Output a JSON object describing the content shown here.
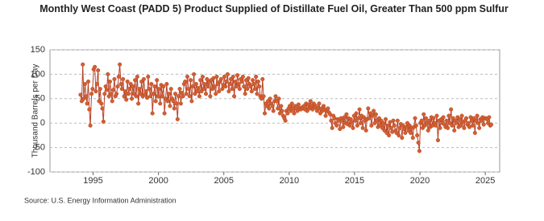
{
  "chart_data": {
    "type": "line",
    "title": "Monthly West Coast (PADD 5) Product Supplied of Distillate Fuel Oil, Greater Than 500 ppm Sulfur",
    "y_label": "Thousand Barrels per Day",
    "source": "Source: U.S. Energy Information Administration",
    "color": "#b5432a",
    "marker_color": "#d2602e",
    "grid": true,
    "xlim": [
      1991.7,
      2026.1
    ],
    "xticks": [
      1995,
      2000,
      2005,
      2010,
      2015,
      2020,
      2025
    ],
    "ylim": [
      -100,
      150
    ],
    "yticks": [
      -100,
      -50,
      0,
      50,
      100,
      150
    ],
    "x": [
      1994.04,
      1994.13,
      1994.21,
      1994.29,
      1994.38,
      1994.46,
      1994.54,
      1994.63,
      1994.71,
      1994.79,
      1994.88,
      1994.96,
      1995.04,
      1995.13,
      1995.21,
      1995.29,
      1995.38,
      1995.46,
      1995.54,
      1995.63,
      1995.71,
      1995.79,
      1995.88,
      1995.96,
      1996.04,
      1996.13,
      1996.21,
      1996.29,
      1996.38,
      1996.46,
      1996.54,
      1996.63,
      1996.71,
      1996.79,
      1996.88,
      1996.96,
      1997.04,
      1997.13,
      1997.21,
      1997.29,
      1997.38,
      1997.46,
      1997.54,
      1997.63,
      1997.71,
      1997.79,
      1997.88,
      1997.96,
      1998.04,
      1998.13,
      1998.21,
      1998.29,
      1998.38,
      1998.46,
      1998.54,
      1998.63,
      1998.71,
      1998.79,
      1998.88,
      1998.96,
      1999.04,
      1999.13,
      1999.21,
      1999.29,
      1999.38,
      1999.46,
      1999.54,
      1999.63,
      1999.71,
      1999.79,
      1999.88,
      1999.96,
      2000.04,
      2000.13,
      2000.21,
      2000.29,
      2000.38,
      2000.46,
      2000.54,
      2000.63,
      2000.71,
      2000.79,
      2000.88,
      2000.96,
      2001.04,
      2001.13,
      2001.21,
      2001.29,
      2001.38,
      2001.46,
      2001.54,
      2001.63,
      2001.71,
      2001.79,
      2001.88,
      2001.96,
      2002.04,
      2002.13,
      2002.21,
      2002.29,
      2002.38,
      2002.46,
      2002.54,
      2002.63,
      2002.71,
      2002.79,
      2002.88,
      2002.96,
      2003.04,
      2003.13,
      2003.21,
      2003.29,
      2003.38,
      2003.46,
      2003.54,
      2003.63,
      2003.71,
      2003.79,
      2003.88,
      2003.96,
      2004.04,
      2004.13,
      2004.21,
      2004.29,
      2004.38,
      2004.46,
      2004.54,
      2004.63,
      2004.71,
      2004.79,
      2004.88,
      2004.96,
      2005.04,
      2005.13,
      2005.21,
      2005.29,
      2005.38,
      2005.46,
      2005.54,
      2005.63,
      2005.71,
      2005.79,
      2005.88,
      2005.96,
      2006.04,
      2006.13,
      2006.21,
      2006.29,
      2006.38,
      2006.46,
      2006.54,
      2006.63,
      2006.71,
      2006.79,
      2006.88,
      2006.96,
      2007.04,
      2007.13,
      2007.21,
      2007.29,
      2007.38,
      2007.46,
      2007.54,
      2007.63,
      2007.71,
      2007.79,
      2007.88,
      2007.96,
      2008.04,
      2008.13,
      2008.21,
      2008.29,
      2008.38,
      2008.46,
      2008.54,
      2008.63,
      2008.71,
      2008.79,
      2008.88,
      2008.96,
      2009.04,
      2009.13,
      2009.21,
      2009.29,
      2009.38,
      2009.46,
      2009.54,
      2009.63,
      2009.71,
      2009.79,
      2009.88,
      2009.96,
      2010.04,
      2010.13,
      2010.21,
      2010.29,
      2010.38,
      2010.46,
      2010.54,
      2010.63,
      2010.71,
      2010.79,
      2010.88,
      2010.96,
      2011.04,
      2011.13,
      2011.21,
      2011.29,
      2011.38,
      2011.46,
      2011.54,
      2011.63,
      2011.71,
      2011.79,
      2011.88,
      2011.96,
      2012.04,
      2012.13,
      2012.21,
      2012.29,
      2012.38,
      2012.46,
      2012.54,
      2012.63,
      2012.71,
      2012.79,
      2012.88,
      2012.96,
      2013.04,
      2013.13,
      2013.21,
      2013.29,
      2013.38,
      2013.46,
      2013.54,
      2013.63,
      2013.71,
      2013.79,
      2013.88,
      2013.96,
      2014.04,
      2014.13,
      2014.21,
      2014.29,
      2014.38,
      2014.46,
      2014.54,
      2014.63,
      2014.71,
      2014.79,
      2014.88,
      2014.96,
      2015.04,
      2015.13,
      2015.21,
      2015.29,
      2015.38,
      2015.46,
      2015.54,
      2015.63,
      2015.71,
      2015.79,
      2015.88,
      2015.96,
      2016.04,
      2016.13,
      2016.21,
      2016.29,
      2016.38,
      2016.46,
      2016.54,
      2016.63,
      2016.71,
      2016.79,
      2016.88,
      2016.96,
      2017.04,
      2017.13,
      2017.21,
      2017.29,
      2017.38,
      2017.46,
      2017.54,
      2017.63,
      2017.71,
      2017.79,
      2017.88,
      2017.96,
      2018.04,
      2018.13,
      2018.21,
      2018.29,
      2018.38,
      2018.46,
      2018.54,
      2018.63,
      2018.71,
      2018.79,
      2018.88,
      2018.96,
      2019.04,
      2019.13,
      2019.21,
      2019.29,
      2019.38,
      2019.46,
      2019.54,
      2019.63,
      2019.71,
      2019.79,
      2019.88,
      2019.96,
      2020.04,
      2020.13,
      2020.21,
      2020.29,
      2020.38,
      2020.46,
      2020.54,
      2020.63,
      2020.71,
      2020.79,
      2020.88,
      2020.96,
      2021.04,
      2021.13,
      2021.21,
      2021.29,
      2021.38,
      2021.46,
      2021.54,
      2021.63,
      2021.71,
      2021.79,
      2021.88,
      2021.96,
      2022.04,
      2022.13,
      2022.21,
      2022.29,
      2022.38,
      2022.46,
      2022.54,
      2022.63,
      2022.71,
      2022.79,
      2022.88,
      2022.96,
      2023.04,
      2023.13,
      2023.21,
      2023.29,
      2023.38,
      2023.46,
      2023.54,
      2023.63,
      2023.71,
      2023.79,
      2023.88,
      2023.96,
      2024.04,
      2024.13,
      2024.21,
      2024.29,
      2024.38,
      2024.46,
      2024.54,
      2024.63,
      2024.71,
      2024.79,
      2024.88,
      2024.96,
      2025.04,
      2025.13,
      2025.21,
      2025.29,
      2025.38,
      2025.46
    ],
    "values": [
      58,
      45,
      120,
      50,
      80,
      55,
      40,
      85,
      28,
      -5,
      60,
      70,
      110,
      115,
      65,
      80,
      108,
      45,
      70,
      40,
      30,
      3,
      60,
      75,
      68,
      100,
      55,
      85,
      60,
      45,
      68,
      90,
      55,
      60,
      75,
      95,
      120,
      80,
      70,
      90,
      55,
      65,
      48,
      85,
      60,
      70,
      80,
      50,
      75,
      60,
      88,
      55,
      95,
      40,
      70,
      60,
      85,
      55,
      90,
      58,
      65,
      52,
      95,
      70,
      55,
      80,
      20,
      60,
      75,
      45,
      88,
      55,
      70,
      40,
      78,
      55,
      75,
      20,
      50,
      80,
      45,
      60,
      35,
      70,
      50,
      45,
      30,
      60,
      40,
      8,
      55,
      70,
      40,
      62,
      55,
      80,
      85,
      60,
      95,
      70,
      55,
      88,
      45,
      75,
      100,
      60,
      80,
      65,
      72,
      55,
      88,
      65,
      95,
      70,
      80,
      60,
      90,
      75,
      85,
      55,
      88,
      70,
      92,
      75,
      60,
      95,
      80,
      65,
      85,
      90,
      70,
      78,
      95,
      75,
      85,
      100,
      65,
      80,
      90,
      70,
      95,
      55,
      85,
      75,
      98,
      80,
      70,
      90,
      85,
      95,
      75,
      60,
      88,
      70,
      92,
      80,
      75,
      65,
      88,
      80,
      70,
      95,
      60,
      85,
      75,
      55,
      50,
      90,
      55,
      20,
      40,
      35,
      45,
      30,
      50,
      40,
      35,
      25,
      45,
      55,
      45,
      30,
      50,
      20,
      35,
      25,
      15,
      10,
      5,
      25,
      20,
      30,
      35,
      25,
      40,
      30,
      20,
      35,
      30,
      25,
      38,
      30,
      28,
      32,
      30,
      35,
      28,
      40,
      25,
      38,
      30,
      45,
      35,
      28,
      40,
      32,
      35,
      25,
      30,
      40,
      20,
      30,
      25,
      35,
      28,
      15,
      25,
      30,
      22,
      18,
      5,
      -10,
      15,
      10,
      0,
      -5,
      8,
      5,
      -12,
      10,
      5,
      -8,
      12,
      0,
      18,
      -2,
      10,
      -5,
      8,
      2,
      -10,
      15,
      5,
      20,
      -5,
      10,
      28,
      0,
      15,
      -10,
      12,
      5,
      -15,
      8,
      30,
      10,
      20,
      -5,
      15,
      25,
      0,
      18,
      5,
      -8,
      10,
      -5,
      5,
      -10,
      0,
      -15,
      8,
      -20,
      -5,
      -25,
      2,
      -10,
      -18,
      5,
      -5,
      -15,
      -20,
      5,
      -25,
      -10,
      -2,
      -30,
      -5,
      -12,
      -20,
      -8,
      0,
      -15,
      -5,
      -20,
      -10,
      -30,
      -8,
      10,
      -5,
      -25,
      -40,
      -57,
      0,
      5,
      -10,
      18,
      -5,
      10,
      0,
      -15,
      5,
      -8,
      12,
      -5,
      10,
      0,
      -5,
      15,
      -35,
      5,
      -10,
      8,
      0,
      12,
      -3,
      -8,
      5,
      -10,
      15,
      0,
      28,
      -5,
      10,
      -15,
      5,
      0,
      12,
      -8,
      8,
      -5,
      15,
      2,
      -10,
      5,
      10,
      -3,
      0,
      -8,
      12,
      5,
      -5,
      10,
      -20,
      5,
      15,
      0,
      -10,
      8,
      5,
      12,
      -3,
      10,
      10,
      8,
      0,
      12,
      -5,
      -3
    ]
  }
}
